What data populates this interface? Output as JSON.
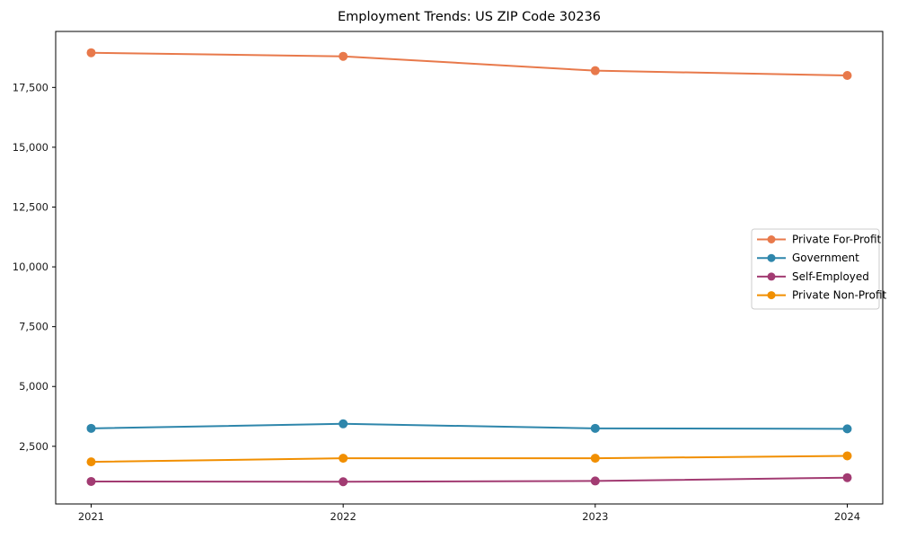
{
  "chart_data": {
    "type": "line",
    "title": "Employment Trends: US ZIP Code 30236",
    "x": [
      2021,
      2022,
      2023,
      2024
    ],
    "x_tick_labels": [
      "2021",
      "2022",
      "2023",
      "2024"
    ],
    "series": [
      {
        "name": "Private For-Profit",
        "color": "#E8794B",
        "values": [
          18950,
          18800,
          18200,
          18000
        ]
      },
      {
        "name": "Government",
        "color": "#2E86AB",
        "values": [
          3250,
          3440,
          3250,
          3230
        ]
      },
      {
        "name": "Self-Employed",
        "color": "#A23B72",
        "values": [
          1030,
          1020,
          1050,
          1190
        ]
      },
      {
        "name": "Private Non-Profit",
        "color": "#F18F01",
        "values": [
          1850,
          2000,
          2000,
          2100
        ]
      }
    ],
    "yticks": [
      2500,
      5000,
      7500,
      10000,
      12500,
      15000,
      17500
    ],
    "y_tick_labels": [
      "2,500",
      "5,000",
      "7,500",
      "10,000",
      "12,500",
      "15,000",
      "17,500"
    ],
    "ylim": [
      90,
      19840
    ],
    "xlabel": "",
    "ylabel": "",
    "grid": false,
    "legend_position": "center right",
    "axis_color": "#000000",
    "tick_label_color": "#1a1a1a",
    "legend_border_color": "#cccccc",
    "plot_background": "#ffffff"
  }
}
